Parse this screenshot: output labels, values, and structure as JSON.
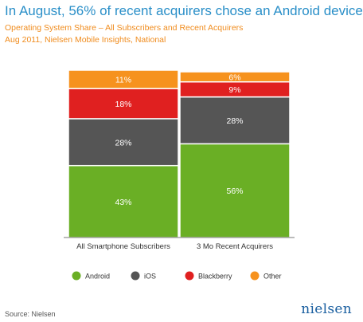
{
  "title": "In August, 56% of recent acquirers chose an Android device",
  "subtitle_line1": "Operating System Share – All Subscribers and Recent Acquirers",
  "subtitle_line2": "Aug 2011, Nielsen Mobile Insights, National",
  "source": "Source: Nielsen",
  "logo": "nielsen",
  "colors": {
    "Android": "#6aaf25",
    "iOS": "#555555",
    "Blackberry": "#e02020",
    "Other": "#f6921e"
  },
  "chart_data": {
    "type": "bar",
    "stacked": true,
    "categories": [
      "All Smartphone Subscribers",
      "3 Mo Recent Acquirers"
    ],
    "series": [
      {
        "name": "Android",
        "values": [
          43,
          56
        ]
      },
      {
        "name": "iOS",
        "values": [
          28,
          28
        ]
      },
      {
        "name": "Blackberry",
        "values": [
          18,
          9
        ]
      },
      {
        "name": "Other",
        "values": [
          11,
          6
        ]
      }
    ],
    "data_labels": [
      [
        "43%",
        "28%",
        "18%",
        "11%"
      ],
      [
        "56%",
        "28%",
        "9%",
        "6%"
      ]
    ],
    "ylim": [
      0,
      100
    ],
    "legend": "bottom",
    "grid": false
  }
}
